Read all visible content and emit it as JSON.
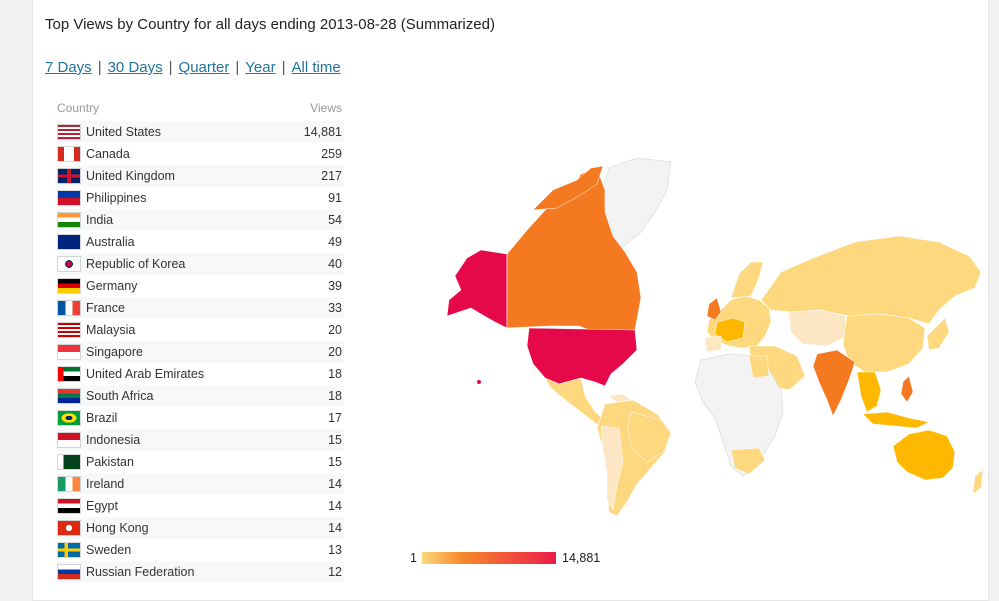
{
  "header": {
    "title": "Top Views by Country for all days ending 2013-08-28 (Summarized)"
  },
  "ranges": [
    "7 Days",
    "30 Days",
    "Quarter",
    "Year",
    "All time"
  ],
  "table": {
    "col_country": "Country",
    "col_views": "Views",
    "rows": [
      {
        "country": "United States",
        "views": "14,881",
        "flag": "us-flag-icon"
      },
      {
        "country": "Canada",
        "views": "259",
        "flag": "ca-flag-icon"
      },
      {
        "country": "United Kingdom",
        "views": "217",
        "flag": "gb-flag-icon"
      },
      {
        "country": "Philippines",
        "views": "91",
        "flag": "ph-flag-icon"
      },
      {
        "country": "India",
        "views": "54",
        "flag": "in-flag-icon"
      },
      {
        "country": "Australia",
        "views": "49",
        "flag": "au-flag-icon"
      },
      {
        "country": "Republic of Korea",
        "views": "40",
        "flag": "kr-flag-icon"
      },
      {
        "country": "Germany",
        "views": "39",
        "flag": "de-flag-icon"
      },
      {
        "country": "France",
        "views": "33",
        "flag": "fr-flag-icon"
      },
      {
        "country": "Malaysia",
        "views": "20",
        "flag": "my-flag-icon"
      },
      {
        "country": "Singapore",
        "views": "20",
        "flag": "sg-flag-icon"
      },
      {
        "country": "United Arab Emirates",
        "views": "18",
        "flag": "ae-flag-icon"
      },
      {
        "country": "South Africa",
        "views": "18",
        "flag": "za-flag-icon"
      },
      {
        "country": "Brazil",
        "views": "17",
        "flag": "br-flag-icon"
      },
      {
        "country": "Indonesia",
        "views": "15",
        "flag": "id-flag-icon"
      },
      {
        "country": "Pakistan",
        "views": "15",
        "flag": "pk-flag-icon"
      },
      {
        "country": "Ireland",
        "views": "14",
        "flag": "ie-flag-icon"
      },
      {
        "country": "Egypt",
        "views": "14",
        "flag": "eg-flag-icon"
      },
      {
        "country": "Hong Kong",
        "views": "14",
        "flag": "hk-flag-icon"
      },
      {
        "country": "Sweden",
        "views": "13",
        "flag": "se-flag-icon"
      },
      {
        "country": "Russian Federation",
        "views": "12",
        "flag": "ru-flag-icon"
      }
    ]
  },
  "legend": {
    "min": "1",
    "max": "14,881",
    "colors": [
      "#fdd77f",
      "#f58a2a",
      "#ec1b4b"
    ]
  },
  "map_colors": {
    "top": "#e5094a",
    "high": "#f47920",
    "mid": "#ffb800",
    "low": "#fed87f",
    "lowest": "#fde6c4",
    "none": "#f3f3f3"
  },
  "link_color": "#21759b"
}
